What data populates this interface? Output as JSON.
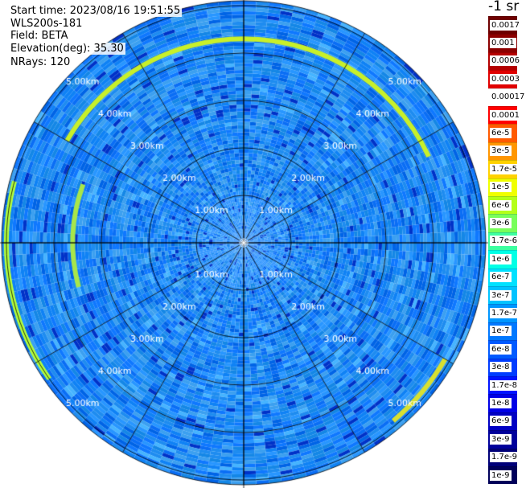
{
  "header": {
    "start_time": "Start time: 2023/08/16 19:51:55",
    "instrument": "WLS200s-181",
    "field": "Field: BETA",
    "elevation": "Elevation(deg): 35.30",
    "nrays": "NRays: 120"
  },
  "colorbar": {
    "units": "-1 sr",
    "labels": [
      "0.0017",
      "0.001",
      "0.0006",
      "0.0003",
      "0.00017",
      "0.0001",
      "6e-5",
      "3e-5",
      "1.7e-5",
      "1e-5",
      "6e-6",
      "3e-6",
      "1.7e-6",
      "1e-6",
      "6e-7",
      "3e-7",
      "1.7e-7",
      "1e-7",
      "6e-8",
      "3e-8",
      "1.7e-8",
      "1e-8",
      "6e-9",
      "3e-9",
      "1.7e-9",
      "1e-9"
    ],
    "colors": [
      "#6e0000",
      "#8c0000",
      "#b40000",
      "#e00000",
      "#ffffff",
      "#ff0000",
      "#ff5a00",
      "#ff9600",
      "#ffd200",
      "#f0ff00",
      "#b4ff19",
      "#78ff5a",
      "#3cffa0",
      "#00ffe6",
      "#00e1ff",
      "#00c3ff",
      "#0096ff",
      "#0078ff",
      "#005aff",
      "#003cff",
      "#0014ff",
      "#0000e6",
      "#0000c3",
      "#00009b",
      "#000078",
      "#00005a"
    ]
  },
  "chart_data": {
    "type": "heatmap",
    "projection": "polar PPI",
    "field": "BETA",
    "elevation_deg": 35.3,
    "nrays": 120,
    "ring_labels": [
      "1.00km",
      "2.00km",
      "3.00km",
      "4.00km",
      "5.00km"
    ],
    "ring_km": [
      1,
      2,
      3,
      4,
      5
    ],
    "max_range_km": 5.1,
    "spoke_angles_deg": [
      0,
      30,
      60,
      90,
      120,
      150,
      180,
      210,
      240,
      270,
      300,
      330
    ],
    "background_colors": [
      "#0f78ff",
      "#1e8cf0",
      "#0f82f5",
      "#1487e6",
      "#0a6ef5",
      "#2896ff",
      "#3ca0f0",
      "#0064e6"
    ],
    "ring_features": [
      {
        "range_km": 4.3,
        "az_start_deg": 300,
        "az_end_deg": 65,
        "color": "#c8f02a"
      },
      {
        "range_km": 3.6,
        "az_start_deg": 255,
        "az_end_deg": 290,
        "color": "#a8e64a"
      },
      {
        "range_km": 5.0,
        "az_start_deg": 235,
        "az_end_deg": 285,
        "color": "#b4ff3c"
      },
      {
        "range_km": 4.9,
        "az_start_deg": 120,
        "az_end_deg": 140,
        "color": "#d8e030"
      }
    ]
  }
}
